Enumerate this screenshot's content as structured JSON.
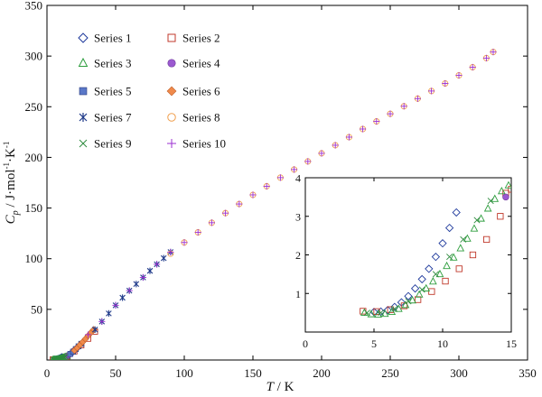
{
  "chart_data": {
    "type": "scatter",
    "xlabel": "T / K",
    "ylabel": "Cp / J·mol⁻¹·K⁻¹",
    "xlabel_parts": {
      "symbol": "T",
      "unit": " / K"
    },
    "ylabel_parts": {
      "symbol": "C",
      "sub": "p",
      "unit": " / J·mol",
      "e1": "-1",
      "mid": "·K",
      "e2": "-1"
    },
    "xlim": [
      0,
      350
    ],
    "ylim": [
      0,
      350
    ],
    "xticks": [
      0,
      50,
      100,
      150,
      200,
      250,
      300,
      350
    ],
    "yticks": [
      50,
      100,
      150,
      200,
      250,
      300,
      350
    ],
    "grid": false,
    "legend_position": "top-left",
    "series": [
      {
        "name": "Series 1",
        "marker": "diamond-open",
        "color": "#1f3a9c",
        "x": [
          5.0,
          5.5,
          6.0,
          6.5,
          7.0,
          7.5,
          8.0,
          8.5,
          9.0,
          9.5,
          10.0,
          10.5,
          11.0
        ],
        "y": [
          0.52,
          0.53,
          0.57,
          0.65,
          0.77,
          0.93,
          1.13,
          1.37,
          1.64,
          1.95,
          2.3,
          2.7,
          3.1
        ]
      },
      {
        "name": "Series 2",
        "marker": "square-open",
        "color": "#c0392b",
        "x": [
          4.2,
          5.2,
          6.2,
          7.2,
          8.2,
          9.2,
          10.2,
          11.2,
          12.2,
          13.2,
          14.2,
          14.6,
          15.0,
          20.0,
          25.0,
          30.0,
          35.0
        ],
        "y": [
          0.54,
          0.53,
          0.58,
          0.68,
          0.84,
          1.05,
          1.32,
          1.64,
          2.0,
          2.4,
          3.0,
          3.6,
          3.7,
          8.5,
          14.5,
          21.0,
          28.0
        ]
      },
      {
        "name": "Series 3",
        "marker": "triangle-open",
        "color": "#2e9e3e",
        "x": [
          4.3,
          4.8,
          5.3,
          5.8,
          6.3,
          6.8,
          7.3,
          7.8,
          8.3,
          8.8,
          9.3,
          9.8,
          10.3,
          10.8,
          11.3,
          11.8,
          12.3,
          12.8,
          13.3,
          13.8,
          14.3,
          14.8
        ],
        "y": [
          0.5,
          0.46,
          0.45,
          0.47,
          0.52,
          0.6,
          0.7,
          0.82,
          0.97,
          1.13,
          1.31,
          1.5,
          1.71,
          1.93,
          2.17,
          2.42,
          2.68,
          2.94,
          3.2,
          3.45,
          3.65,
          3.8
        ]
      },
      {
        "name": "Series 4",
        "marker": "circle-filled",
        "color": "#9b59d0",
        "x": [
          14.6,
          16.0,
          18.0,
          20.0,
          22.0
        ],
        "y": [
          3.5,
          5.0,
          7.0,
          9.6,
          12.0
        ]
      },
      {
        "name": "Series 5",
        "marker": "square-filled",
        "color": "#5a78c8",
        "x": [
          17.0,
          19.0,
          21.0,
          23.0,
          25.0
        ],
        "y": [
          6.0,
          8.2,
          10.8,
          13.5,
          16.0
        ]
      },
      {
        "name": "Series 6",
        "marker": "diamond-filled",
        "color": "#f08a4b",
        "x": [
          20.0,
          22.0,
          24.0,
          26.0,
          28.0,
          30.0,
          32.0,
          34.0
        ],
        "y": [
          9.5,
          12.0,
          14.8,
          17.8,
          20.8,
          24.0,
          27.0,
          30.0
        ]
      },
      {
        "name": "Series 7",
        "marker": "asterisk",
        "color": "#1f3a8a",
        "x": [
          35,
          40,
          45,
          50,
          55,
          60,
          65,
          70,
          75,
          80,
          85,
          90
        ],
        "y": [
          30.0,
          38.0,
          46.0,
          54.0,
          61.5,
          68.5,
          75.0,
          81.5,
          88.0,
          94.5,
          100.5,
          106.5
        ]
      },
      {
        "name": "Series 8",
        "marker": "circle-open",
        "color": "#f0a050",
        "x": [
          90,
          100,
          110,
          120,
          130,
          140,
          150,
          160,
          170,
          180,
          190,
          200,
          210,
          220,
          230,
          240,
          250,
          260,
          270,
          280,
          290,
          300,
          310,
          320,
          325
        ],
        "y": [
          105.0,
          116.0,
          126.0,
          135.5,
          145.0,
          154.0,
          163.0,
          171.5,
          180.0,
          188.0,
          196.0,
          204.0,
          212.0,
          220.0,
          228.0,
          235.5,
          243.0,
          250.5,
          258.0,
          265.5,
          273.0,
          281.0,
          289.0,
          298.0,
          304.0
        ]
      },
      {
        "name": "Series 9",
        "marker": "x-cross",
        "color": "#2e8b3e",
        "x": [
          4.5,
          5.5,
          6.5,
          7.5,
          8.5,
          9.5,
          10.5,
          11.5,
          12.5,
          13.5
        ],
        "y": [
          0.5,
          0.5,
          0.6,
          0.8,
          1.1,
          1.5,
          1.95,
          2.4,
          2.9,
          3.4
        ]
      },
      {
        "name": "Series 10",
        "marker": "plus",
        "color": "#9b2fd0",
        "x": [
          30,
          40,
          50,
          60,
          70,
          80,
          90,
          100,
          110,
          120,
          130,
          140,
          150,
          160,
          170,
          180,
          190,
          200,
          210,
          220,
          230,
          240,
          250,
          260,
          270,
          280,
          290,
          300,
          310,
          320,
          325
        ],
        "y": [
          25.0,
          38.0,
          54.0,
          68.5,
          81.5,
          94.5,
          106.5,
          116.0,
          126.0,
          135.5,
          145.0,
          154.0,
          163.0,
          171.5,
          180.0,
          188.0,
          196.0,
          204.0,
          212.0,
          220.0,
          228.0,
          235.5,
          243.0,
          250.5,
          258.0,
          265.5,
          273.0,
          281.0,
          289.0,
          298.0,
          304.0
        ]
      }
    ],
    "inset": {
      "xlim": [
        0,
        15
      ],
      "ylim": [
        0,
        4
      ],
      "xticks": [
        0,
        5,
        10,
        15
      ],
      "yticks": [
        1,
        2,
        3,
        4
      ]
    }
  }
}
